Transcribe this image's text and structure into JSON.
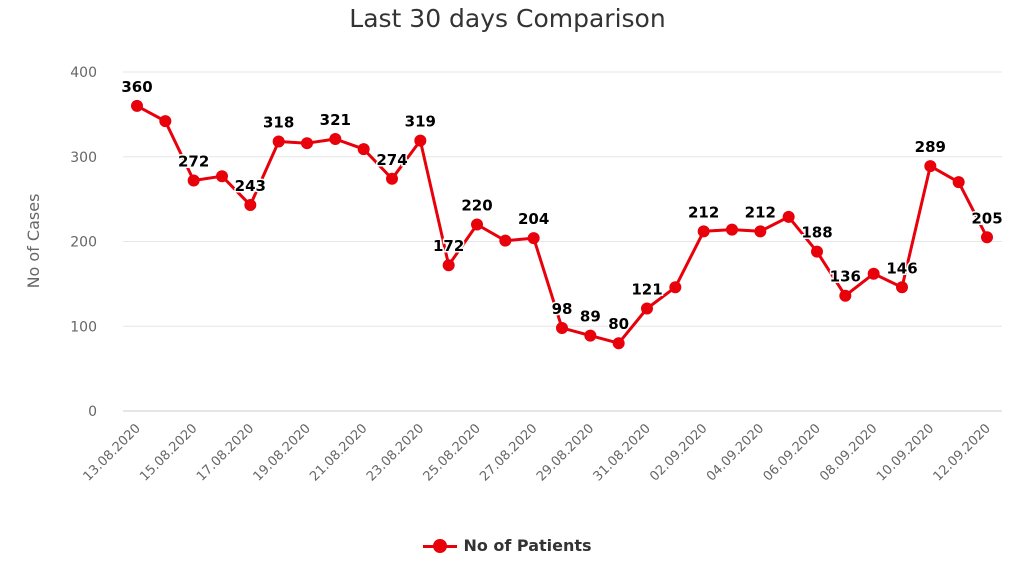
{
  "colors": {
    "series": "#e8000b",
    "grid": "#e6e6e6",
    "axis_text": "#666666",
    "title": "#333333"
  },
  "chart_data": {
    "type": "line",
    "title": "Last 30 days Comparison",
    "ylabel": "No of Cases",
    "ylim": [
      0,
      400
    ],
    "yticks": [
      0,
      100,
      200,
      300,
      400
    ],
    "x": [
      "13.08.2020",
      "14.08.2020",
      "15.08.2020",
      "16.08.2020",
      "17.08.2020",
      "18.08.2020",
      "19.08.2020",
      "20.08.2020",
      "21.08.2020",
      "22.08.2020",
      "23.08.2020",
      "24.08.2020",
      "25.08.2020",
      "26.08.2020",
      "27.08.2020",
      "28.08.2020",
      "29.08.2020",
      "30.08.2020",
      "31.08.2020",
      "01.09.2020",
      "02.09.2020",
      "03.09.2020",
      "04.09.2020",
      "05.09.2020",
      "06.09.2020",
      "07.09.2020",
      "08.09.2020",
      "09.09.2020",
      "10.09.2020",
      "11.09.2020",
      "12.09.2020"
    ],
    "xtick_labels": [
      "13.08.2020",
      "15.08.2020",
      "17.08.2020",
      "19.08.2020",
      "21.08.2020",
      "23.08.2020",
      "25.08.2020",
      "27.08.2020",
      "29.08.2020",
      "31.08.2020",
      "02.09.2020",
      "04.09.2020",
      "06.09.2020",
      "08.09.2020",
      "10.09.2020",
      "12.09.2020"
    ],
    "series": [
      {
        "name": "No of Patients",
        "values": [
          360,
          342,
          272,
          277,
          243,
          318,
          316,
          321,
          309,
          274,
          319,
          172,
          220,
          201,
          204,
          98,
          89,
          80,
          121,
          146,
          212,
          214,
          212,
          229,
          188,
          136,
          162,
          146,
          289,
          270,
          205
        ]
      }
    ],
    "data_labels": [
      {
        "index": 0,
        "text": "360"
      },
      {
        "index": 2,
        "text": "272"
      },
      {
        "index": 4,
        "text": "243"
      },
      {
        "index": 5,
        "text": "318"
      },
      {
        "index": 7,
        "text": "321"
      },
      {
        "index": 9,
        "text": "274"
      },
      {
        "index": 10,
        "text": "319"
      },
      {
        "index": 11,
        "text": "172"
      },
      {
        "index": 12,
        "text": "220"
      },
      {
        "index": 14,
        "text": "204"
      },
      {
        "index": 15,
        "text": "98"
      },
      {
        "index": 16,
        "text": "89"
      },
      {
        "index": 17,
        "text": "80"
      },
      {
        "index": 18,
        "text": "121"
      },
      {
        "index": 20,
        "text": "212"
      },
      {
        "index": 22,
        "text": "212"
      },
      {
        "index": 24,
        "text": "188"
      },
      {
        "index": 25,
        "text": "136"
      },
      {
        "index": 27,
        "text": "146"
      },
      {
        "index": 28,
        "text": "289"
      },
      {
        "index": 30,
        "text": "205"
      }
    ],
    "legend_position": "bottom-center",
    "grid": true
  }
}
